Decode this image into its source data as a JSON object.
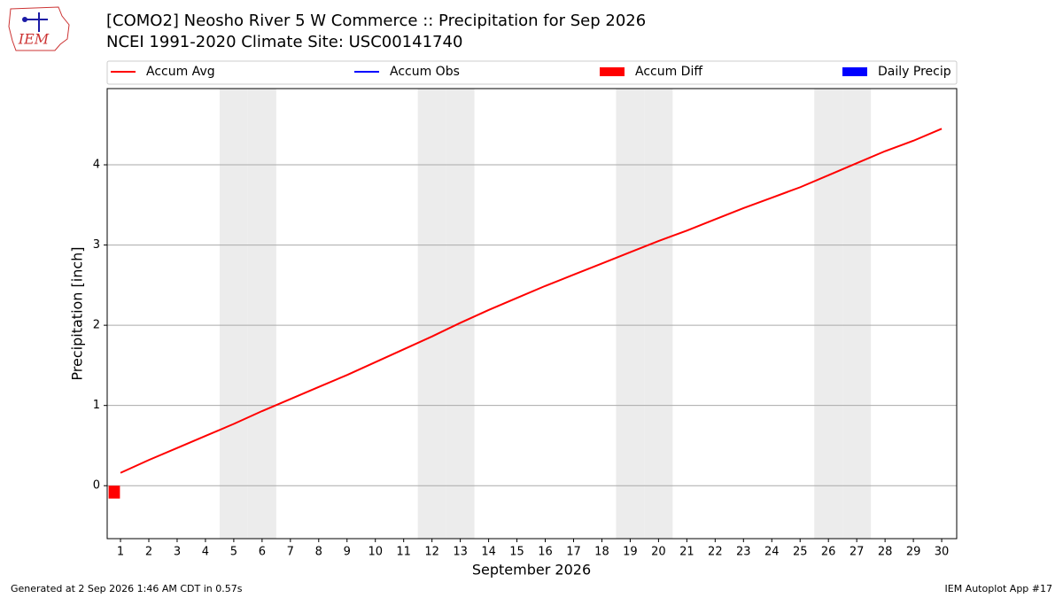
{
  "logo_text": "IEM",
  "chart_data": {
    "type": "line",
    "title": "[COMO2] Neosho River 5 W Commerce :: Precipitation for Sep 2026",
    "subtitle": "NCEI 1991-2020 Climate Site: USC00141740",
    "xlabel": "September 2026",
    "ylabel": "Precipitation [inch]",
    "x": [
      1,
      2,
      3,
      4,
      5,
      6,
      7,
      8,
      9,
      10,
      11,
      12,
      13,
      14,
      15,
      16,
      17,
      18,
      19,
      20,
      21,
      22,
      23,
      24,
      25,
      26,
      27,
      28,
      29,
      30
    ],
    "xlim": [
      0.53,
      30.53
    ],
    "xticks": [
      1,
      2,
      3,
      4,
      5,
      6,
      7,
      8,
      9,
      10,
      11,
      12,
      13,
      14,
      15,
      16,
      17,
      18,
      19,
      20,
      21,
      22,
      23,
      24,
      25,
      26,
      27,
      28,
      29,
      30
    ],
    "ylim": [
      -0.66,
      4.95
    ],
    "yticks": [
      0,
      1,
      2,
      3,
      4
    ],
    "grid": true,
    "shaded_days": [
      5,
      6,
      12,
      13,
      19,
      20,
      26,
      27
    ],
    "series": [
      {
        "name": "Accum Avg",
        "color": "#ff0000",
        "kind": "line",
        "values": [
          0.16,
          0.32,
          0.47,
          0.62,
          0.77,
          0.93,
          1.08,
          1.23,
          1.38,
          1.54,
          1.7,
          1.86,
          2.03,
          2.19,
          2.34,
          2.49,
          2.63,
          2.77,
          2.91,
          3.05,
          3.18,
          3.32,
          3.46,
          3.59,
          3.72,
          3.87,
          4.02,
          4.17,
          4.3,
          4.45
        ]
      },
      {
        "name": "Accum Obs",
        "color": "#0000ff",
        "kind": "line",
        "values": [
          null,
          null,
          null,
          null,
          null,
          null,
          null,
          null,
          null,
          null,
          null,
          null,
          null,
          null,
          null,
          null,
          null,
          null,
          null,
          null,
          null,
          null,
          null,
          null,
          null,
          null,
          null,
          null,
          null,
          null
        ]
      },
      {
        "name": "Accum Diff",
        "color": "#ff0000",
        "kind": "bar",
        "values": [
          -0.16,
          null,
          null,
          null,
          null,
          null,
          null,
          null,
          null,
          null,
          null,
          null,
          null,
          null,
          null,
          null,
          null,
          null,
          null,
          null,
          null,
          null,
          null,
          null,
          null,
          null,
          null,
          null,
          null,
          null
        ]
      },
      {
        "name": "Daily Precip",
        "color": "#0000ff",
        "kind": "bar",
        "values": [
          null,
          null,
          null,
          null,
          null,
          null,
          null,
          null,
          null,
          null,
          null,
          null,
          null,
          null,
          null,
          null,
          null,
          null,
          null,
          null,
          null,
          null,
          null,
          null,
          null,
          null,
          null,
          null,
          null,
          null
        ]
      }
    ],
    "footer_left": "Generated at 2 Sep 2026 1:46 AM CDT in 0.57s",
    "footer_right": "IEM Autoplot App #17"
  }
}
